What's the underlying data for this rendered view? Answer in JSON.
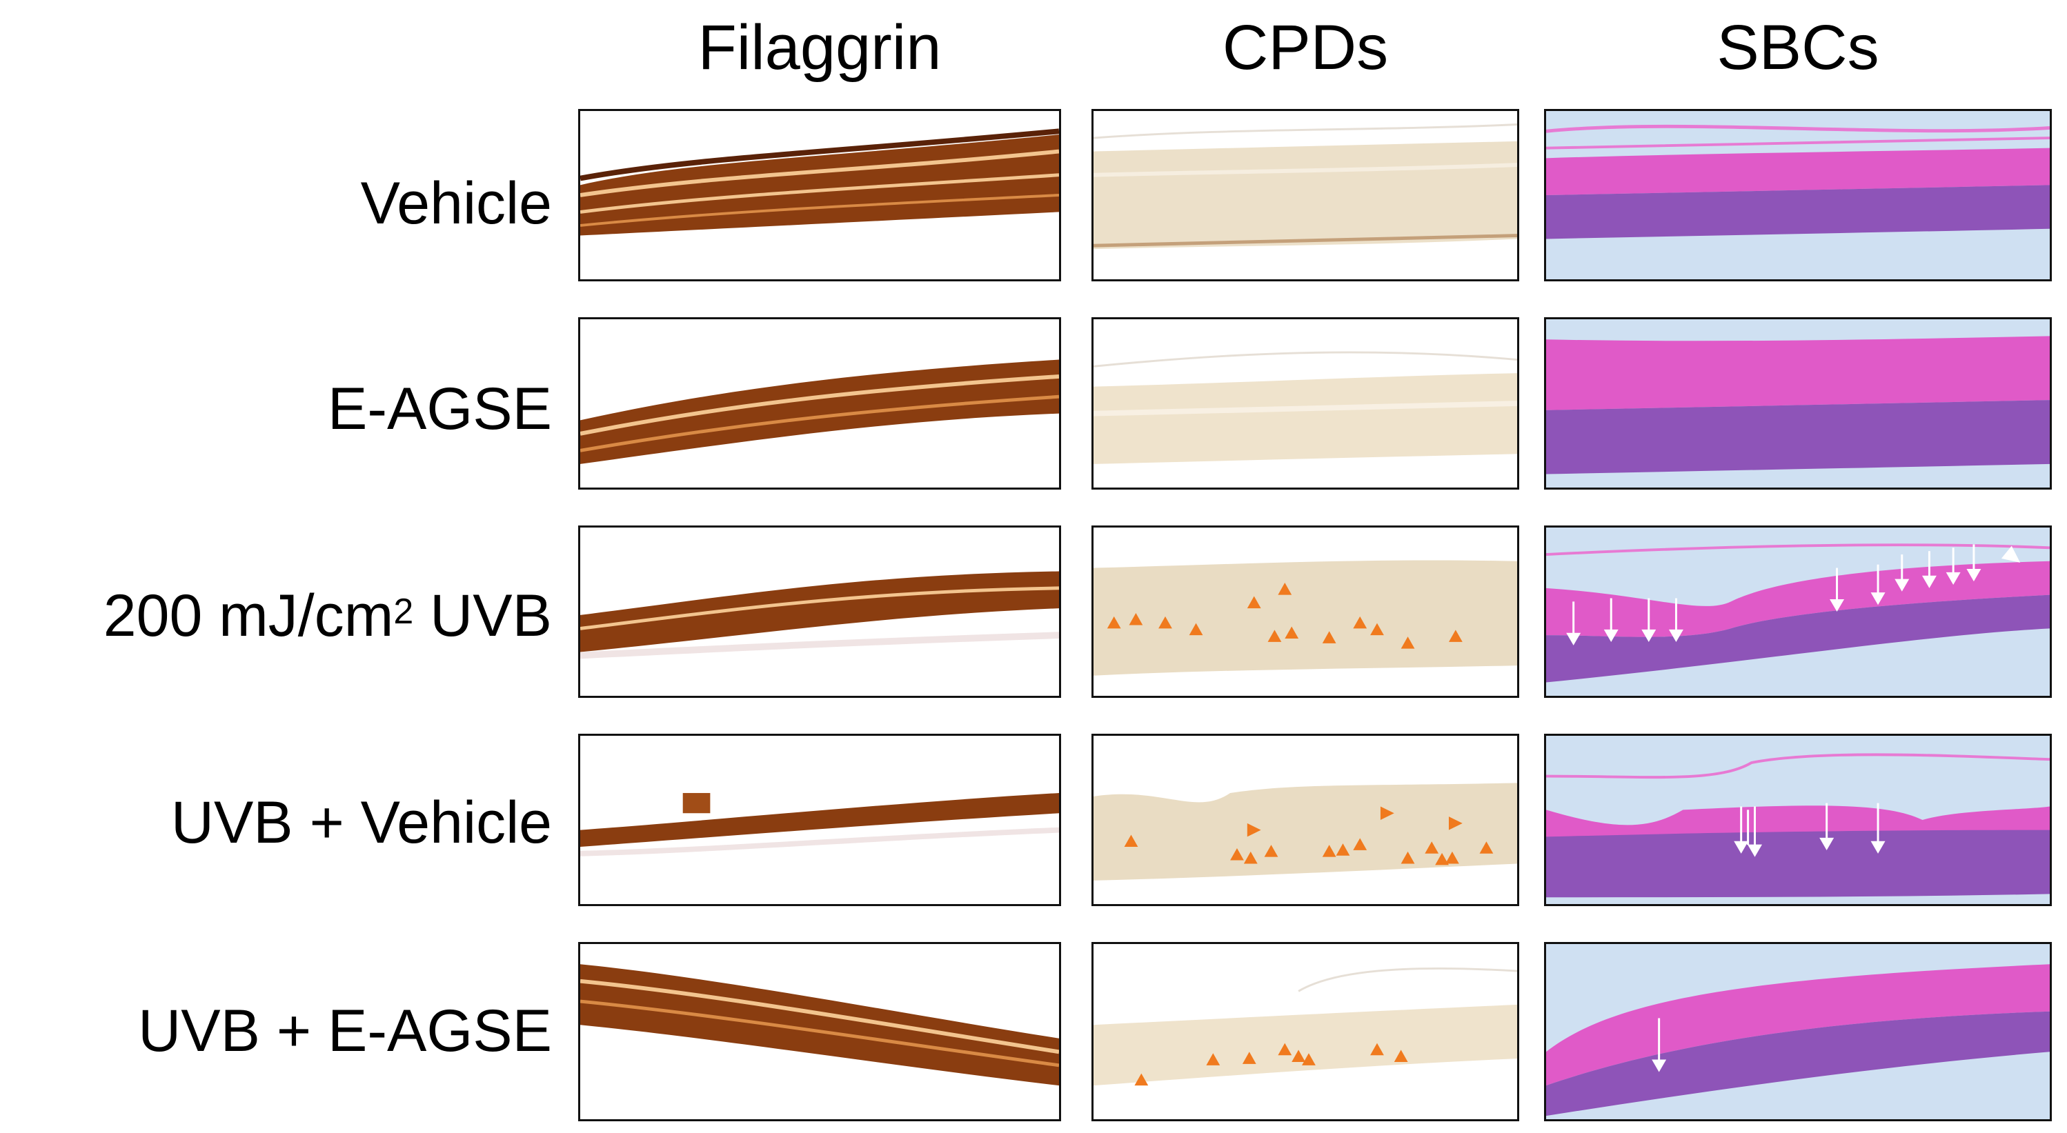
{
  "columns": {
    "filaggrin": "Filaggrin",
    "cpds": "CPDs",
    "sbcs": "SBCs"
  },
  "rows": {
    "vehicle": "Vehicle",
    "eagse": "E-AGSE",
    "uvb200_prefix": "200 mJ/cm",
    "uvb200_sup": "2",
    "uvb200_suffix": " UVB",
    "uvb_vehicle": "UVB + Vehicle",
    "uvb_eagse": "UVB + E-AGSE"
  },
  "colors": {
    "filaggrin_stain": "#8a3d10",
    "cpd_tissue": "#e9dcc3",
    "he_pink": "#e05ac8",
    "he_purple": "#8e54b8",
    "slide_bg": "#cfe0f2",
    "arrowhead_orange": "#f07a1e",
    "arrow_white": "#ffffff"
  },
  "markers": {
    "cpd_arrowheads_per_row": [
      0,
      0,
      13,
      15,
      8
    ],
    "sbc_arrows_per_row": [
      0,
      0,
      11,
      5,
      1
    ]
  }
}
